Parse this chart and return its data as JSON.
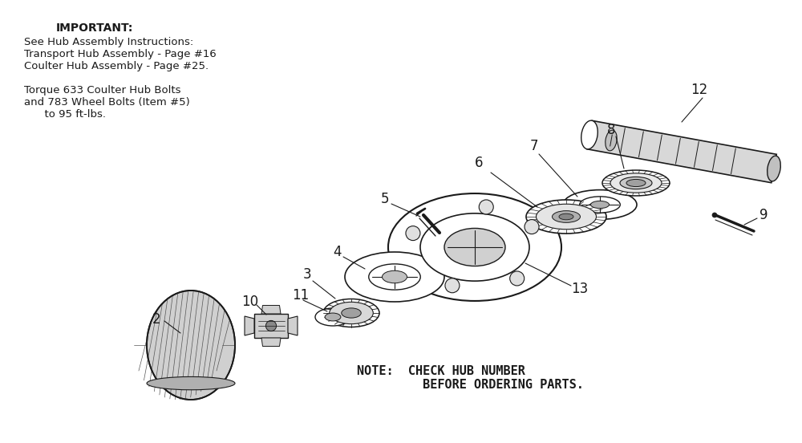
{
  "bg_color": "#ffffff",
  "text_color": "#1a1a1a",
  "important_title": "IMPORTANT:",
  "important_lines": [
    "See Hub Assembly Instructions:",
    "Transport Hub Assembly - Page #16",
    "Coulter Hub Assembly - Page #25.",
    "",
    "Torque 633 Coulter Hub Bolts",
    "and 783 Wheel Bolts (Item #5)",
    "      to 95 ft-lbs."
  ],
  "note_line1": "NOTE:  CHECK HUB NUMBER",
  "note_line2": "         BEFORE ORDERING PARTS.",
  "figw": 10.0,
  "figh": 5.52,
  "dpi": 100
}
